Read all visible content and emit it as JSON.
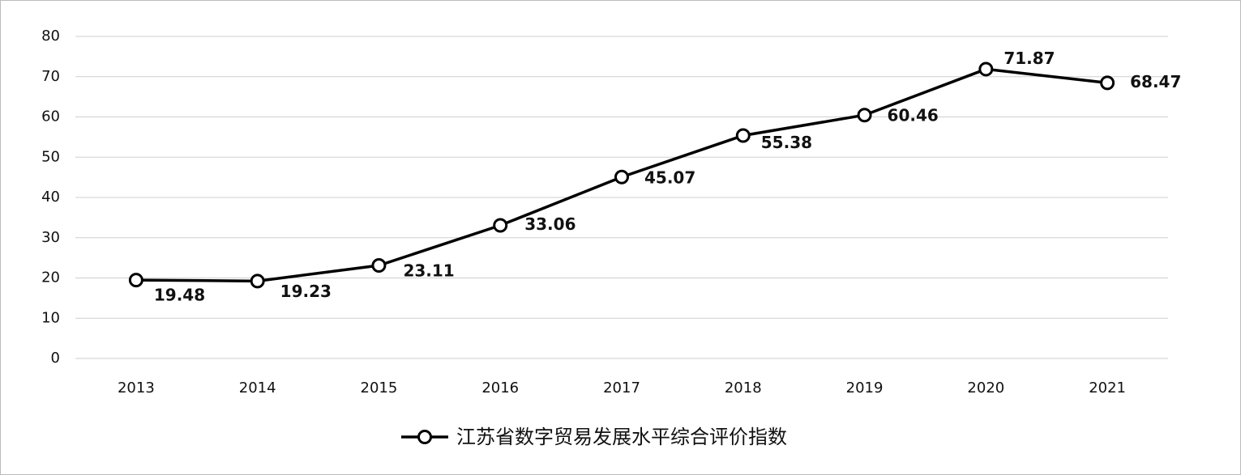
{
  "chart_data": {
    "type": "line",
    "categories": [
      "2013",
      "2014",
      "2015",
      "2016",
      "2017",
      "2018",
      "2019",
      "2020",
      "2021"
    ],
    "series": [
      {
        "name": "江苏省数字贸易发展水平综合评价指数",
        "color": "#000000",
        "values": [
          19.48,
          19.23,
          23.11,
          33.06,
          45.07,
          55.38,
          60.46,
          71.87,
          68.47
        ]
      }
    ],
    "ylim": [
      0,
      80
    ],
    "yticks": [
      0,
      10,
      20,
      30,
      40,
      50,
      60,
      70,
      80
    ],
    "grid": true,
    "legend": "bottom"
  }
}
